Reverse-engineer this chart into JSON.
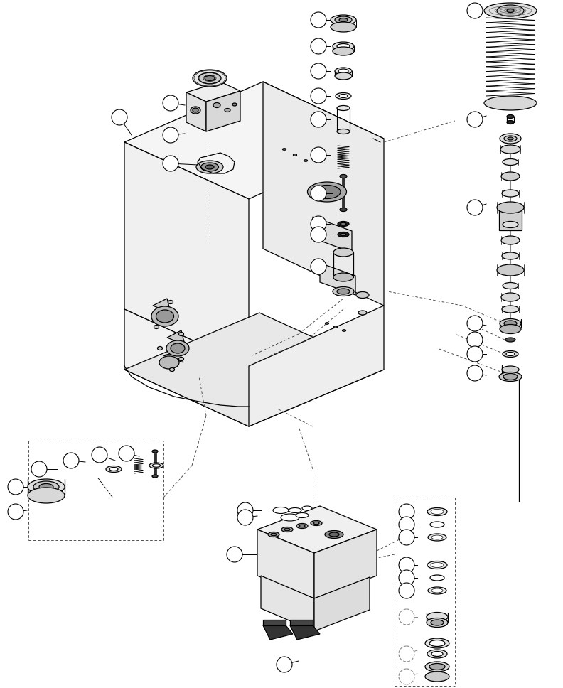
{
  "background": "#ffffff",
  "lc": "#000000",
  "figsize": [
    7.92,
    9.68
  ],
  "dpi": 100,
  "lw": 0.9,
  "lw_thin": 0.6
}
